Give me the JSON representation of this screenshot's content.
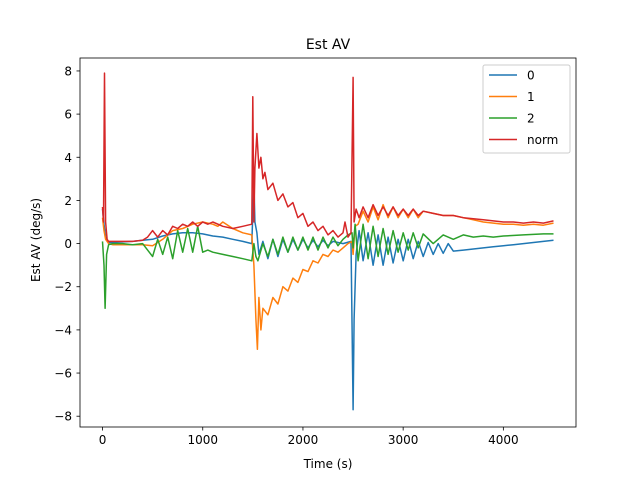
{
  "chart_data": {
    "type": "line",
    "title": "Est AV",
    "xlabel": "Time (s)",
    "ylabel": "Est AV (deg/s)",
    "xlim": [
      -225,
      4725
    ],
    "ylim": [
      -8.5,
      8.6
    ],
    "xticks": [
      0,
      1000,
      2000,
      3000,
      4000
    ],
    "yticks": [
      -8,
      -6,
      -4,
      -2,
      0,
      2,
      4,
      6,
      8
    ],
    "grid": false,
    "legend_position": "top-right",
    "series": [
      {
        "name": "0",
        "color": "#1f77b4",
        "points": [
          [
            0,
            1.6
          ],
          [
            15,
            0.9
          ],
          [
            30,
            0.3
          ],
          [
            60,
            0.05
          ],
          [
            100,
            0.05
          ],
          [
            200,
            0.08
          ],
          [
            300,
            0.1
          ],
          [
            400,
            0.15
          ],
          [
            500,
            0.2
          ],
          [
            600,
            0.35
          ],
          [
            700,
            0.45
          ],
          [
            800,
            0.5
          ],
          [
            900,
            0.5
          ],
          [
            1000,
            0.45
          ],
          [
            1100,
            0.35
          ],
          [
            1200,
            0.3
          ],
          [
            1300,
            0.2
          ],
          [
            1400,
            0.1
          ],
          [
            1490,
            0.0
          ],
          [
            1510,
            2.9
          ],
          [
            1520,
            1.0
          ],
          [
            1540,
            0.5
          ],
          [
            1560,
            -0.5
          ],
          [
            1600,
            0.1
          ],
          [
            1650,
            -0.7
          ],
          [
            1700,
            0.2
          ],
          [
            1750,
            -0.6
          ],
          [
            1800,
            0.2
          ],
          [
            1850,
            -0.4
          ],
          [
            1900,
            0.2
          ],
          [
            1950,
            -0.3
          ],
          [
            2000,
            0.2
          ],
          [
            2050,
            -0.2
          ],
          [
            2100,
            0.15
          ],
          [
            2150,
            -0.15
          ],
          [
            2200,
            0.15
          ],
          [
            2250,
            -0.1
          ],
          [
            2300,
            0.1
          ],
          [
            2400,
            0.0
          ],
          [
            2480,
            0.1
          ],
          [
            2500,
            -7.7
          ],
          [
            2510,
            -3.5
          ],
          [
            2530,
            -0.5
          ],
          [
            2560,
            0.6
          ],
          [
            2600,
            -0.8
          ],
          [
            2650,
            0.5
          ],
          [
            2700,
            -1.0
          ],
          [
            2750,
            0.4
          ],
          [
            2800,
            -1.0
          ],
          [
            2850,
            0.3
          ],
          [
            2900,
            -0.9
          ],
          [
            2950,
            0.2
          ],
          [
            3000,
            -0.8
          ],
          [
            3050,
            0.2
          ],
          [
            3100,
            -0.7
          ],
          [
            3150,
            0.1
          ],
          [
            3200,
            -0.6
          ],
          [
            3250,
            0.05
          ],
          [
            3300,
            -0.5
          ],
          [
            3350,
            0.0
          ],
          [
            3400,
            -0.45
          ],
          [
            3450,
            0.0
          ],
          [
            3500,
            -0.35
          ],
          [
            3600,
            -0.3
          ],
          [
            3700,
            -0.25
          ],
          [
            3800,
            -0.2
          ],
          [
            3900,
            -0.15
          ],
          [
            4000,
            -0.1
          ],
          [
            4100,
            -0.05
          ],
          [
            4200,
            0.0
          ],
          [
            4300,
            0.05
          ],
          [
            4400,
            0.1
          ],
          [
            4500,
            0.15
          ]
        ]
      },
      {
        "name": "1",
        "color": "#ff7f0e",
        "points": [
          [
            0,
            1.2
          ],
          [
            15,
            0.6
          ],
          [
            30,
            0.2
          ],
          [
            60,
            0.0
          ],
          [
            100,
            -0.05
          ],
          [
            200,
            -0.05
          ],
          [
            300,
            -0.05
          ],
          [
            400,
            -0.05
          ],
          [
            500,
            -0.1
          ],
          [
            600,
            0.2
          ],
          [
            700,
            0.6
          ],
          [
            800,
            0.7
          ],
          [
            900,
            0.9
          ],
          [
            1000,
            1.0
          ],
          [
            1100,
            0.9
          ],
          [
            1150,
            0.8
          ],
          [
            1200,
            1.0
          ],
          [
            1300,
            0.7
          ],
          [
            1400,
            0.5
          ],
          [
            1490,
            0.4
          ],
          [
            1510,
            -1.0
          ],
          [
            1530,
            -3.5
          ],
          [
            1545,
            -4.9
          ],
          [
            1560,
            -2.5
          ],
          [
            1580,
            -4.0
          ],
          [
            1600,
            -3.0
          ],
          [
            1650,
            -3.3
          ],
          [
            1700,
            -2.5
          ],
          [
            1750,
            -2.8
          ],
          [
            1800,
            -2.0
          ],
          [
            1850,
            -2.2
          ],
          [
            1900,
            -1.6
          ],
          [
            1950,
            -1.8
          ],
          [
            2000,
            -1.2
          ],
          [
            2050,
            -1.3
          ],
          [
            2100,
            -0.8
          ],
          [
            2150,
            -0.9
          ],
          [
            2200,
            -0.5
          ],
          [
            2250,
            -0.6
          ],
          [
            2300,
            -0.3
          ],
          [
            2350,
            -0.4
          ],
          [
            2400,
            -0.2
          ],
          [
            2450,
            0.0
          ],
          [
            2490,
            0.1
          ],
          [
            2500,
            -0.5
          ],
          [
            2520,
            0.8
          ],
          [
            2550,
            0.9
          ],
          [
            2600,
            1.5
          ],
          [
            2650,
            1.0
          ],
          [
            2700,
            1.7
          ],
          [
            2750,
            1.1
          ],
          [
            2800,
            1.8
          ],
          [
            2850,
            1.2
          ],
          [
            2900,
            1.7
          ],
          [
            2950,
            1.2
          ],
          [
            3000,
            1.6
          ],
          [
            3050,
            1.2
          ],
          [
            3100,
            1.6
          ],
          [
            3150,
            1.2
          ],
          [
            3200,
            1.5
          ],
          [
            3300,
            1.4
          ],
          [
            3400,
            1.3
          ],
          [
            3500,
            1.3
          ],
          [
            3600,
            1.2
          ],
          [
            3700,
            1.1
          ],
          [
            3800,
            1.0
          ],
          [
            3900,
            0.95
          ],
          [
            4000,
            0.9
          ],
          [
            4100,
            0.9
          ],
          [
            4200,
            0.85
          ],
          [
            4300,
            0.9
          ],
          [
            4400,
            0.85
          ],
          [
            4500,
            0.95
          ]
        ]
      },
      {
        "name": "2",
        "color": "#2ca02c",
        "points": [
          [
            0,
            0.1
          ],
          [
            15,
            -1.0
          ],
          [
            25,
            -3.0
          ],
          [
            40,
            -0.5
          ],
          [
            60,
            -0.05
          ],
          [
            100,
            0.0
          ],
          [
            200,
            0.0
          ],
          [
            300,
            -0.05
          ],
          [
            400,
            0.0
          ],
          [
            450,
            -0.3
          ],
          [
            500,
            -0.6
          ],
          [
            550,
            0.2
          ],
          [
            600,
            -0.5
          ],
          [
            650,
            0.3
          ],
          [
            700,
            -0.7
          ],
          [
            750,
            0.6
          ],
          [
            800,
            -0.4
          ],
          [
            850,
            0.7
          ],
          [
            900,
            -0.4
          ],
          [
            950,
            0.8
          ],
          [
            1000,
            -0.4
          ],
          [
            1050,
            -0.3
          ],
          [
            1100,
            -0.4
          ],
          [
            1200,
            -0.5
          ],
          [
            1300,
            -0.6
          ],
          [
            1400,
            -0.7
          ],
          [
            1490,
            -0.8
          ],
          [
            1510,
            0.0
          ],
          [
            1530,
            -0.6
          ],
          [
            1550,
            -0.8
          ],
          [
            1600,
            0.0
          ],
          [
            1650,
            -0.6
          ],
          [
            1700,
            0.2
          ],
          [
            1750,
            -0.5
          ],
          [
            1800,
            0.3
          ],
          [
            1850,
            -0.4
          ],
          [
            1900,
            0.3
          ],
          [
            1950,
            -0.3
          ],
          [
            2000,
            0.3
          ],
          [
            2050,
            -0.3
          ],
          [
            2100,
            0.3
          ],
          [
            2150,
            -0.3
          ],
          [
            2200,
            0.3
          ],
          [
            2250,
            -0.2
          ],
          [
            2300,
            0.3
          ],
          [
            2350,
            -0.1
          ],
          [
            2400,
            0.2
          ],
          [
            2450,
            0.4
          ],
          [
            2490,
            0.5
          ],
          [
            2500,
            -0.2
          ],
          [
            2520,
            0.9
          ],
          [
            2550,
            -0.8
          ],
          [
            2600,
            0.9
          ],
          [
            2650,
            -0.7
          ],
          [
            2700,
            0.8
          ],
          [
            2750,
            -0.6
          ],
          [
            2800,
            0.7
          ],
          [
            2850,
            -0.5
          ],
          [
            2900,
            0.6
          ],
          [
            2950,
            -0.4
          ],
          [
            3000,
            0.5
          ],
          [
            3050,
            -0.3
          ],
          [
            3100,
            0.5
          ],
          [
            3150,
            -0.2
          ],
          [
            3200,
            0.45
          ],
          [
            3300,
            0.0
          ],
          [
            3400,
            0.4
          ],
          [
            3500,
            0.2
          ],
          [
            3600,
            0.4
          ],
          [
            3700,
            0.3
          ],
          [
            3800,
            0.35
          ],
          [
            3900,
            0.3
          ],
          [
            4000,
            0.35
          ],
          [
            4200,
            0.4
          ],
          [
            4400,
            0.45
          ],
          [
            4500,
            0.45
          ]
        ]
      },
      {
        "name": "norm",
        "color": "#d62728",
        "points": [
          [
            0,
            1.7
          ],
          [
            10,
            1.0
          ],
          [
            20,
            7.9
          ],
          [
            30,
            1.0
          ],
          [
            45,
            0.2
          ],
          [
            60,
            0.1
          ],
          [
            100,
            0.1
          ],
          [
            200,
            0.1
          ],
          [
            300,
            0.1
          ],
          [
            400,
            0.15
          ],
          [
            450,
            0.3
          ],
          [
            500,
            0.6
          ],
          [
            550,
            0.3
          ],
          [
            600,
            0.6
          ],
          [
            650,
            0.4
          ],
          [
            700,
            0.8
          ],
          [
            750,
            0.7
          ],
          [
            800,
            0.9
          ],
          [
            850,
            0.8
          ],
          [
            900,
            1.0
          ],
          [
            950,
            0.8
          ],
          [
            1000,
            1.0
          ],
          [
            1050,
            0.9
          ],
          [
            1100,
            1.0
          ],
          [
            1200,
            0.8
          ],
          [
            1300,
            0.7
          ],
          [
            1400,
            0.8
          ],
          [
            1490,
            0.9
          ],
          [
            1500,
            6.8
          ],
          [
            1510,
            1.0
          ],
          [
            1520,
            3.5
          ],
          [
            1540,
            5.1
          ],
          [
            1560,
            3.5
          ],
          [
            1580,
            4.0
          ],
          [
            1600,
            3.0
          ],
          [
            1620,
            3.3
          ],
          [
            1650,
            2.5
          ],
          [
            1700,
            2.8
          ],
          [
            1750,
            2.0
          ],
          [
            1800,
            2.3
          ],
          [
            1850,
            1.7
          ],
          [
            1900,
            1.9
          ],
          [
            1950,
            1.2
          ],
          [
            2000,
            1.4
          ],
          [
            2050,
            0.8
          ],
          [
            2100,
            1.0
          ],
          [
            2150,
            0.6
          ],
          [
            2200,
            0.8
          ],
          [
            2250,
            0.4
          ],
          [
            2300,
            0.6
          ],
          [
            2350,
            0.3
          ],
          [
            2400,
            0.5
          ],
          [
            2420,
            1.0
          ],
          [
            2450,
            0.3
          ],
          [
            2480,
            0.5
          ],
          [
            2500,
            7.7
          ],
          [
            2510,
            1.0
          ],
          [
            2530,
            1.6
          ],
          [
            2560,
            1.2
          ],
          [
            2600,
            1.7
          ],
          [
            2650,
            1.2
          ],
          [
            2700,
            1.8
          ],
          [
            2750,
            1.3
          ],
          [
            2800,
            1.7
          ],
          [
            2850,
            1.3
          ],
          [
            2900,
            1.7
          ],
          [
            2950,
            1.3
          ],
          [
            3000,
            1.6
          ],
          [
            3050,
            1.3
          ],
          [
            3100,
            1.6
          ],
          [
            3150,
            1.3
          ],
          [
            3200,
            1.5
          ],
          [
            3300,
            1.4
          ],
          [
            3400,
            1.3
          ],
          [
            3500,
            1.3
          ],
          [
            3600,
            1.2
          ],
          [
            3700,
            1.15
          ],
          [
            3800,
            1.1
          ],
          [
            3900,
            1.05
          ],
          [
            4000,
            1.0
          ],
          [
            4100,
            1.0
          ],
          [
            4200,
            0.95
          ],
          [
            4300,
            1.0
          ],
          [
            4400,
            0.95
          ],
          [
            4500,
            1.05
          ]
        ]
      }
    ]
  }
}
